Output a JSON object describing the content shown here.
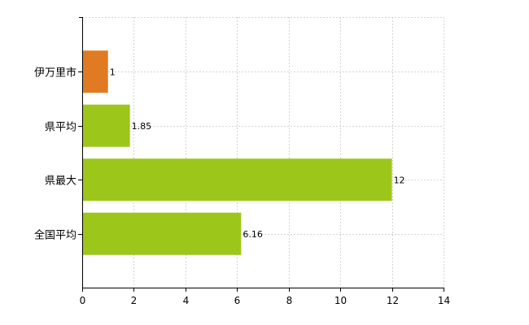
{
  "chart_data": {
    "type": "bar",
    "orientation": "horizontal",
    "categories": [
      "伊万里市",
      "県平均",
      "県最大",
      "全国平均"
    ],
    "values": [
      1,
      1.85,
      12,
      6.16
    ],
    "value_labels": [
      "1",
      "1.85",
      "12",
      "6.16"
    ],
    "bar_colors": [
      "#e07b24",
      "#9dc61a",
      "#9dc61a",
      "#9dc61a"
    ],
    "xlim": [
      0,
      14
    ],
    "x_ticks": [
      0,
      2,
      4,
      6,
      8,
      10,
      12,
      14
    ],
    "grid": true,
    "title": "",
    "xlabel": "",
    "ylabel": ""
  }
}
